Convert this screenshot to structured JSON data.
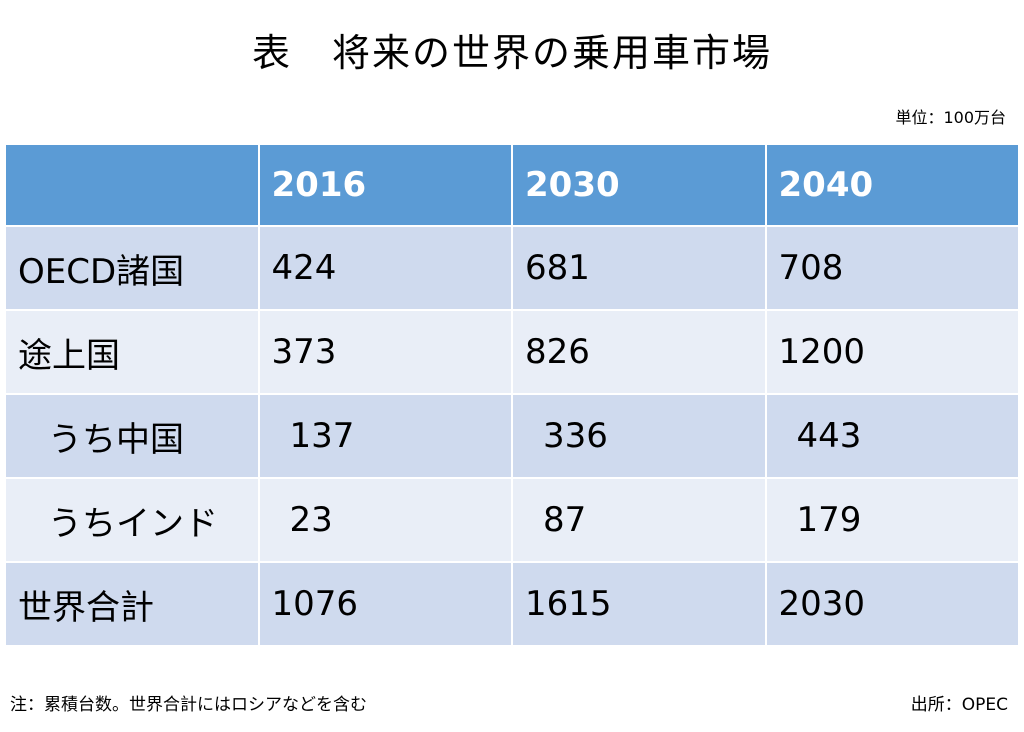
{
  "title": "表　将来の世界の乗用車市場",
  "unit": "単位：100万台",
  "table": {
    "columns": [
      "2016",
      "2030",
      "2040"
    ],
    "rows": [
      {
        "label": "OECD諸国",
        "values": [
          424,
          681,
          708
        ]
      },
      {
        "label": "途上国",
        "values": [
          373,
          826,
          1200
        ]
      },
      {
        "label": "うち中国",
        "values": [
          137,
          336,
          443
        ]
      },
      {
        "label": "うちインド",
        "values": [
          23,
          87,
          179
        ]
      },
      {
        "label": "世界合計",
        "values": [
          1076,
          1615,
          2030
        ]
      }
    ]
  },
  "note": "注：累積台数。世界合計にはロシアなどを含む",
  "source": "出所：OPEC"
}
